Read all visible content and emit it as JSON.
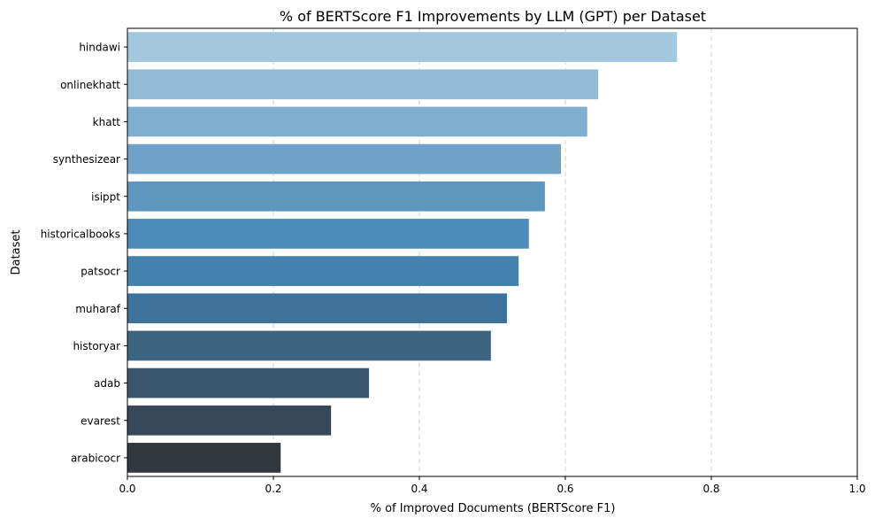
{
  "chart_data": {
    "type": "bar",
    "orientation": "horizontal",
    "title": "% of BERTScore F1 Improvements by LLM (GPT) per Dataset",
    "xlabel": "% of Improved Documents (BERTScore F1)",
    "ylabel": "Dataset",
    "xlim": [
      0,
      1.0
    ],
    "xticks": [
      "0.0",
      "0.2",
      "0.4",
      "0.6",
      "0.8",
      "1.0"
    ],
    "grid": "x-axis dashed",
    "categories": [
      "hindawi",
      "onlinekhatt",
      "khatt",
      "synthesizear",
      "isippt",
      "historicalbooks",
      "patsocr",
      "muharaf",
      "historyar",
      "adab",
      "evarest",
      "arabicocr"
    ],
    "values": [
      0.753,
      0.645,
      0.63,
      0.594,
      0.572,
      0.55,
      0.536,
      0.52,
      0.498,
      0.331,
      0.279,
      0.21
    ],
    "colors": [
      "#a3c7dc",
      "#93bad6",
      "#80aece",
      "#6fa2c6",
      "#5e96c0",
      "#4d8bbb",
      "#4581ae",
      "#3f729a",
      "#3d6581",
      "#3a566d",
      "#36485a",
      "#33383f"
    ]
  }
}
